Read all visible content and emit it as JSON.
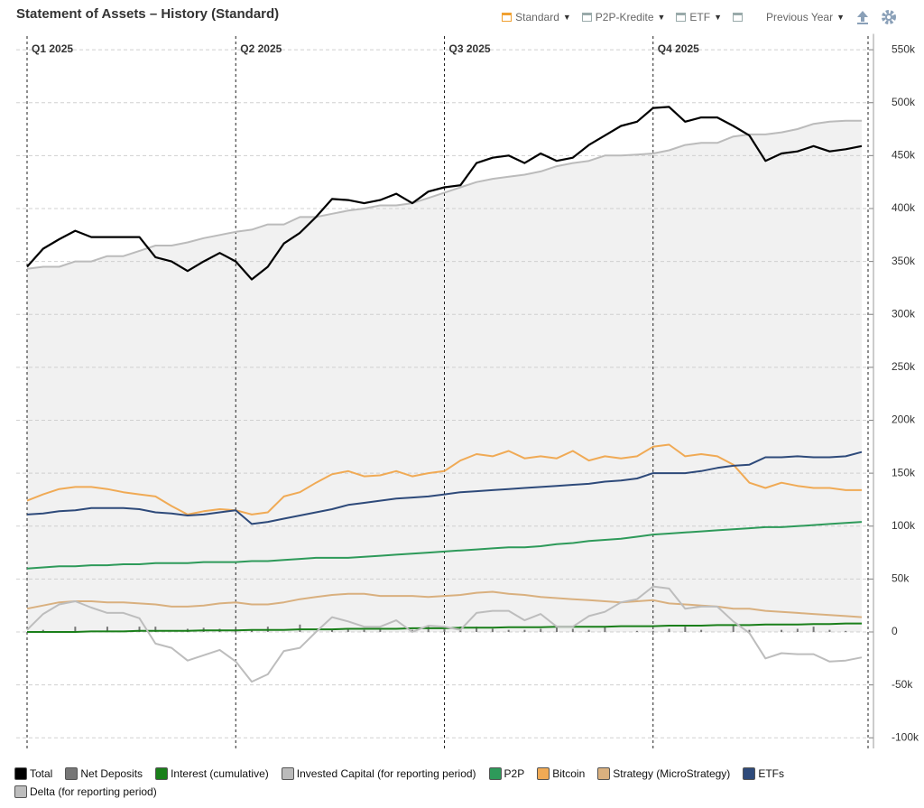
{
  "title": "Statement of Assets – History (Standard)",
  "toolbar": [
    "Standard",
    "P2P-Kredite",
    "ETF",
    "Previous Year"
  ],
  "chart_data": {
    "type": "line",
    "categories": [
      "Q1 2025",
      null,
      null,
      null,
      null,
      null,
      null,
      null,
      null,
      null,
      null,
      null,
      null,
      "Q2 2025",
      null,
      null,
      null,
      null,
      null,
      null,
      null,
      null,
      null,
      null,
      null,
      null,
      "Q3 2025",
      null,
      null,
      null,
      null,
      null,
      null,
      null,
      null,
      null,
      null,
      null,
      null,
      "Q4 2025",
      null,
      null,
      null,
      null,
      null,
      null,
      null,
      null,
      null,
      null,
      null,
      null,
      null
    ],
    "ylim": [
      -110000,
      565000
    ],
    "yticks": [
      {
        "value": 550000,
        "label": "550k"
      },
      {
        "value": 500000,
        "label": "500k"
      },
      {
        "value": 450000,
        "label": "450k"
      },
      {
        "value": 400000,
        "label": "400k"
      },
      {
        "value": 350000,
        "label": "350k"
      },
      {
        "value": 300000,
        "label": "300k"
      },
      {
        "value": 250000,
        "label": "250k"
      },
      {
        "value": 200000,
        "label": "200k"
      },
      {
        "value": 150000,
        "label": "150k"
      },
      {
        "value": 100000,
        "label": "100k"
      },
      {
        "value": 50000,
        "label": "50k"
      },
      0,
      {
        "value": -50000,
        "label": "-50k"
      },
      {
        "value": -100000,
        "label": "-100k"
      }
    ],
    "grid": true,
    "series": [
      {
        "name": "Total",
        "color": "#000000",
        "type": "line",
        "values": [
          345000,
          362000,
          371000,
          379000,
          373000,
          373000,
          373000,
          373000,
          354000,
          350000,
          341000,
          350000,
          358000,
          350000,
          333000,
          345000,
          367000,
          377000,
          392000,
          409000,
          408000,
          405000,
          408000,
          414000,
          405000,
          416000,
          420000,
          422000,
          443000,
          448000,
          450000,
          443000,
          452000,
          445000,
          448000,
          460000,
          469000,
          478000,
          482000,
          495000,
          496000,
          482000,
          486000,
          486000,
          478000,
          469000,
          445000,
          452000,
          454000,
          459000,
          454000,
          456000,
          459000
        ]
      },
      {
        "name": "Net Deposits",
        "color": "#777777",
        "type": "bar",
        "values": [
          0,
          2000,
          0,
          5000,
          0,
          5000,
          0,
          5000,
          5000,
          0,
          3000,
          4000,
          3000,
          3000,
          2000,
          5000,
          0,
          7000,
          0,
          3000,
          3000,
          2000,
          3000,
          0,
          2000,
          5000,
          5000,
          5000,
          5000,
          3000,
          2000,
          2000,
          3000,
          5000,
          3000,
          2000,
          5000,
          0,
          1000,
          1000,
          3000,
          5000,
          2000,
          0,
          6000,
          2000,
          0,
          2000,
          3000,
          5000,
          2000,
          1000,
          0
        ]
      },
      {
        "name": "Interest (cumulative)",
        "color": "#1a7f1a",
        "type": "line",
        "values": [
          0,
          0,
          0,
          0,
          500,
          500,
          500,
          1000,
          1000,
          1000,
          1000,
          1500,
          1500,
          1500,
          2000,
          2000,
          2000,
          2500,
          2500,
          2500,
          3000,
          3000,
          3000,
          3000,
          3500,
          3500,
          3500,
          4000,
          4000,
          4000,
          4500,
          4500,
          4500,
          5000,
          5000,
          5000,
          5000,
          5500,
          5500,
          5500,
          6000,
          6000,
          6000,
          6500,
          6500,
          6500,
          7000,
          7000,
          7000,
          7500,
          7500,
          8000,
          8000
        ]
      },
      {
        "name": "Invested Capital (for reporting period)",
        "color": "#bbbbbb",
        "type": "area",
        "values": [
          343000,
          345000,
          345000,
          350000,
          350000,
          355000,
          355000,
          360000,
          365000,
          365000,
          368000,
          372000,
          375000,
          378000,
          380000,
          385000,
          385000,
          392000,
          392000,
          395000,
          398000,
          400000,
          403000,
          403000,
          405000,
          410000,
          415000,
          420000,
          425000,
          428000,
          430000,
          432000,
          435000,
          440000,
          443000,
          445000,
          450000,
          450000,
          451000,
          452000,
          455000,
          460000,
          462000,
          462000,
          468000,
          470000,
          470000,
          472000,
          475000,
          480000,
          482000,
          483000,
          483000
        ]
      },
      {
        "name": "P2P",
        "color": "#2e9a5a",
        "type": "line",
        "values": [
          60000,
          61000,
          62000,
          62000,
          63000,
          63000,
          64000,
          64000,
          65000,
          65000,
          65000,
          66000,
          66000,
          66000,
          67000,
          67000,
          68000,
          69000,
          70000,
          70000,
          70000,
          71000,
          72000,
          73000,
          74000,
          75000,
          76000,
          77000,
          78000,
          79000,
          80000,
          80000,
          81000,
          83000,
          84000,
          86000,
          87000,
          88000,
          90000,
          92000,
          93000,
          94000,
          95000,
          96000,
          97000,
          98000,
          99000,
          99000,
          100000,
          101000,
          102000,
          103000,
          104000
        ]
      },
      {
        "name": "Bitcoin",
        "color": "#f0aa55",
        "type": "line",
        "values": [
          124000,
          130000,
          135000,
          137000,
          137000,
          135000,
          132000,
          130000,
          128000,
          119000,
          111000,
          114000,
          116000,
          115000,
          111000,
          113000,
          128000,
          132000,
          141000,
          149000,
          152000,
          147000,
          148000,
          152000,
          147000,
          150000,
          152000,
          162000,
          168000,
          166000,
          171000,
          164000,
          166000,
          164000,
          171000,
          162000,
          166000,
          164000,
          166000,
          175000,
          177000,
          166000,
          168000,
          166000,
          158000,
          141000,
          136000,
          141000,
          138000,
          136000,
          136000,
          134000,
          134000
        ]
      },
      {
        "name": "Strategy (MicroStrategy)",
        "color": "#d9b07f",
        "type": "line",
        "values": [
          22000,
          25000,
          28000,
          29000,
          29000,
          28000,
          28000,
          27000,
          26000,
          24000,
          24000,
          25000,
          27000,
          28000,
          26000,
          26000,
          28000,
          31000,
          33000,
          35000,
          36000,
          36000,
          34000,
          34000,
          34000,
          33000,
          34000,
          35000,
          37000,
          38000,
          36000,
          35000,
          33000,
          32000,
          31000,
          30000,
          29000,
          28000,
          29000,
          30000,
          27000,
          26000,
          25000,
          24000,
          22000,
          22000,
          20000,
          19000,
          18000,
          17000,
          16000,
          15000,
          14000
        ]
      },
      {
        "name": "ETFs",
        "color": "#2e4a7a",
        "type": "line",
        "values": [
          111000,
          112000,
          114000,
          115000,
          117000,
          117000,
          117000,
          116000,
          113000,
          112000,
          110000,
          111000,
          113000,
          115000,
          102000,
          104000,
          107000,
          110000,
          113000,
          116000,
          120000,
          122000,
          124000,
          126000,
          127000,
          128000,
          130000,
          132000,
          133000,
          134000,
          135000,
          136000,
          137000,
          138000,
          139000,
          140000,
          142000,
          143000,
          145000,
          150000,
          150000,
          150000,
          152000,
          155000,
          157000,
          158000,
          165000,
          165000,
          166000,
          165000,
          165000,
          166000,
          170000
        ]
      },
      {
        "name": "Delta (for reporting period)",
        "color": "#bdbdbd",
        "type": "line",
        "values": [
          2000,
          17000,
          26000,
          29000,
          23000,
          18000,
          18000,
          13000,
          -11000,
          -15000,
          -27000,
          -22000,
          -17000,
          -28000,
          -47000,
          -40000,
          -18000,
          -15000,
          0,
          14000,
          10000,
          5000,
          5000,
          11000,
          0,
          6000,
          5000,
          2000,
          18000,
          20000,
          20000,
          11000,
          17000,
          5000,
          5000,
          15000,
          19000,
          28000,
          31000,
          43000,
          41000,
          22000,
          24000,
          24000,
          10000,
          -1000,
          -25000,
          -20000,
          -21000,
          -21000,
          -28000,
          -27000,
          -24000
        ]
      }
    ]
  }
}
